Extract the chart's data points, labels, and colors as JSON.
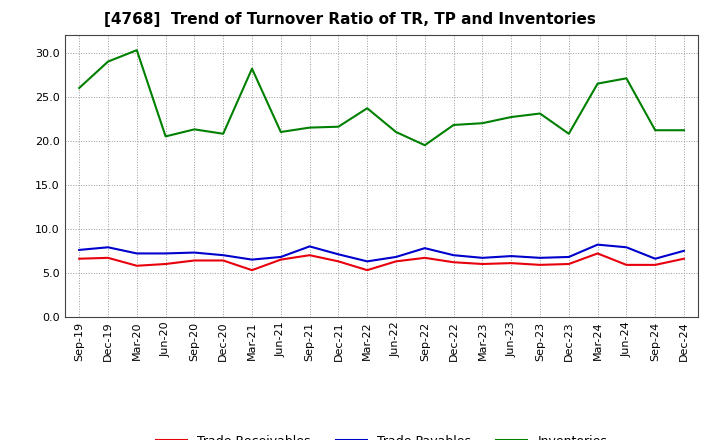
{
  "title": "[4768]  Trend of Turnover Ratio of TR, TP and Inventories",
  "x_labels": [
    "Sep-19",
    "Dec-19",
    "Mar-20",
    "Jun-20",
    "Sep-20",
    "Dec-20",
    "Mar-21",
    "Jun-21",
    "Sep-21",
    "Dec-21",
    "Mar-22",
    "Jun-22",
    "Sep-22",
    "Dec-22",
    "Mar-23",
    "Jun-23",
    "Sep-23",
    "Dec-23",
    "Mar-24",
    "Jun-24",
    "Sep-24",
    "Dec-24"
  ],
  "trade_receivables": [
    6.6,
    6.7,
    5.8,
    6.0,
    6.4,
    6.4,
    5.3,
    6.5,
    7.0,
    6.3,
    5.3,
    6.3,
    6.7,
    6.2,
    6.0,
    6.1,
    5.9,
    6.0,
    7.2,
    5.9,
    5.9,
    6.6
  ],
  "trade_payables": [
    7.6,
    7.9,
    7.2,
    7.2,
    7.3,
    7.0,
    6.5,
    6.8,
    8.0,
    7.1,
    6.3,
    6.8,
    7.8,
    7.0,
    6.7,
    6.9,
    6.7,
    6.8,
    8.2,
    7.9,
    6.6,
    7.5
  ],
  "inventories": [
    26.0,
    29.0,
    30.3,
    20.5,
    21.3,
    20.8,
    28.2,
    21.0,
    21.5,
    21.6,
    23.7,
    21.0,
    19.5,
    21.8,
    22.0,
    22.7,
    23.1,
    20.8,
    26.5,
    27.1,
    21.2,
    21.2
  ],
  "line_colors": {
    "trade_receivables": "#e8000d",
    "trade_payables": "#0000cc",
    "inventories": "#008000"
  },
  "ylim": [
    0.0,
    32.0
  ],
  "yticks": [
    0.0,
    5.0,
    10.0,
    15.0,
    20.0,
    25.0,
    30.0
  ],
  "background_color": "#ffffff",
  "grid_color": "#999999",
  "spine_color": "#444444",
  "title_fontsize": 11,
  "tick_fontsize": 8,
  "legend_fontsize": 9,
  "linewidth": 1.5
}
